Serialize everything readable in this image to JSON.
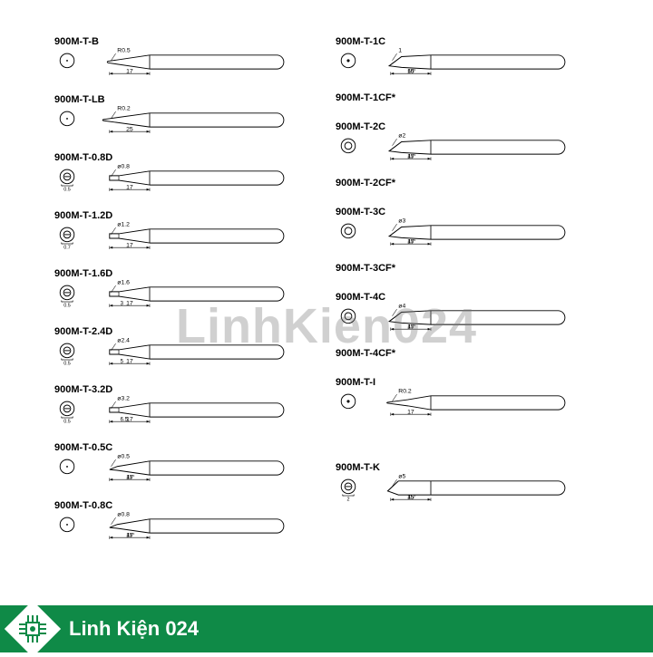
{
  "brand": {
    "watermark": "LinhKien024",
    "footer_text": "Linh Kiện 024",
    "brand_color": "#0f8a47",
    "background": "#ffffff"
  },
  "diagram": {
    "type": "infographic",
    "stroke": "#000000",
    "stroke_width": 1,
    "font_size_label": 11,
    "font_size_dim": 8
  },
  "left_column": [
    {
      "label": "900M-T-B",
      "dim_len": "17",
      "dim_top": "R0.5",
      "cross": "circle_small",
      "shape": "cone"
    },
    {
      "label": "900M-T-LB",
      "dim_len": "25",
      "dim_top": "R0.2",
      "cross": "circle_small",
      "shape": "cone_long"
    },
    {
      "label": "900M-T-0.8D",
      "dim_len": "17",
      "dim_top": "ø0.8",
      "dim_under_cross": "0.5",
      "cross": "double_ring_slot",
      "shape": "chisel",
      "chisel_len": ""
    },
    {
      "label": "900M-T-1.2D",
      "dim_len": "17",
      "dim_top": "ø1.2",
      "dim_under_cross": "0.7",
      "cross": "double_ring_slot",
      "shape": "chisel",
      "chisel_len": ""
    },
    {
      "label": "900M-T-1.6D",
      "dim_len": "17",
      "dim_top": "ø1.6",
      "dim_under_cross": "0.5",
      "cross": "double_ring_slot",
      "shape": "chisel",
      "chisel_len": "3"
    },
    {
      "label": "900M-T-2.4D",
      "dim_len": "17",
      "dim_top": "ø2.4",
      "dim_under_cross": "0.5",
      "cross": "double_ring_slot",
      "shape": "chisel",
      "chisel_len": "5"
    },
    {
      "label": "900M-T-3.2D",
      "dim_len": "17",
      "dim_top": "ø3.2",
      "dim_under_cross": "0.5",
      "cross": "double_ring_slot",
      "shape": "chisel",
      "chisel_len": "6.5"
    },
    {
      "label": "900M-T-0.5C",
      "dim_len": "17",
      "dim_top": "ø0.5",
      "angle": "45°",
      "cross": "circle_small",
      "shape": "bevel"
    },
    {
      "label": "900M-T-0.8C",
      "dim_len": "17",
      "dim_top": "ø0.8",
      "angle": "45°",
      "cross": "circle_small",
      "shape": "bevel"
    }
  ],
  "right_column": [
    {
      "label": "900M-T-1C",
      "label2": "900M-T-1CF*",
      "dim_len": "15",
      "angle": "60°",
      "dim_top": "1",
      "cross": "circle_dot",
      "shape": "bevel_big"
    },
    {
      "label": "900M-T-2C",
      "label2": "900M-T-2CF*",
      "dim_len": "17",
      "angle": "45°",
      "dim_top": "ø2",
      "cross": "double_ring",
      "shape": "bevel_big"
    },
    {
      "label": "900M-T-3C",
      "label2": "900M-T-3CF*",
      "dim_len": "17",
      "angle": "45°",
      "dim_top": "ø3",
      "cross": "double_ring",
      "shape": "bevel_big"
    },
    {
      "label": "900M-T-4C",
      "label2": "900M-T-4CF*",
      "dim_len": "17",
      "angle": "45°",
      "dim_top": "ø4",
      "cross": "double_ring",
      "shape": "bevel_big"
    },
    {
      "label": "900M-T-I",
      "dim_len": "17",
      "dim_top": "R0.2",
      "cross": "circle_dot",
      "shape": "needle"
    },
    {
      "label": "900M-T-K",
      "dim_len": "15",
      "dim_top": "ø5",
      "dim_under_cross": "2",
      "angle": "45°",
      "cross": "double_ring_slot",
      "shape": "knife"
    }
  ]
}
